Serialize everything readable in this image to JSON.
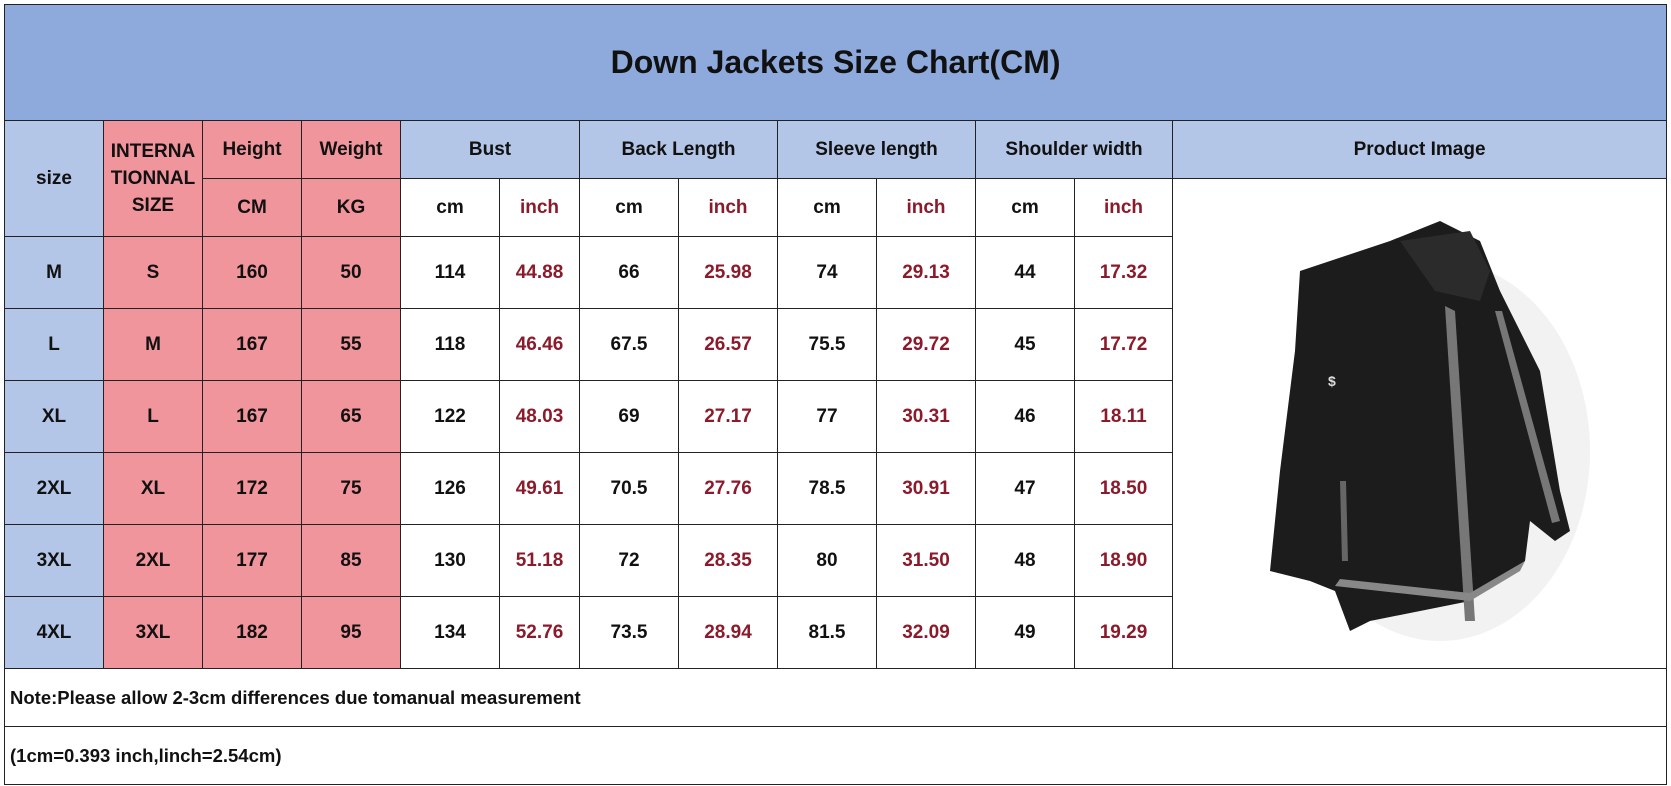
{
  "title": "Down Jackets Size Chart(CM)",
  "header": [
    "size",
    "INTERNATIONNAL SIZE",
    "Height",
    "Weight",
    "Bust",
    "Back Length",
    "Sleeve length",
    "Shoulder width",
    "Product Image"
  ],
  "units": [
    "CM",
    "KG",
    "cm",
    "inch",
    "cm",
    "inch",
    "cm",
    "inch",
    "cm",
    "inch"
  ],
  "rows": [
    [
      "M",
      "S",
      "160",
      "50",
      "114",
      "44.88",
      "66",
      "25.98",
      "74",
      "29.13",
      "44",
      "17.32"
    ],
    [
      "L",
      "M",
      "167",
      "55",
      "118",
      "46.46",
      "67.5",
      "26.57",
      "75.5",
      "29.72",
      "45",
      "17.72"
    ],
    [
      "XL",
      "L",
      "167",
      "65",
      "122",
      "48.03",
      "69",
      "27.17",
      "77",
      "30.31",
      "46",
      "18.11"
    ],
    [
      "2XL",
      "XL",
      "172",
      "75",
      "126",
      "49.61",
      "70.5",
      "27.76",
      "78.5",
      "30.91",
      "47",
      "18.50"
    ],
    [
      "3XL",
      "2XL",
      "177",
      "85",
      "130",
      "51.18",
      "72",
      "28.35",
      "80",
      "31.50",
      "48",
      "18.90"
    ],
    [
      "4XL",
      "3XL",
      "182",
      "95",
      "134",
      "52.76",
      "73.5",
      "28.94",
      "81.5",
      "32.09",
      "49",
      "19.29"
    ]
  ],
  "note": "Note:Please allow 2-3cm differences due tomanual measurement",
  "conversion": "(1cm=0.393  inch,linch=2.54cm)"
}
